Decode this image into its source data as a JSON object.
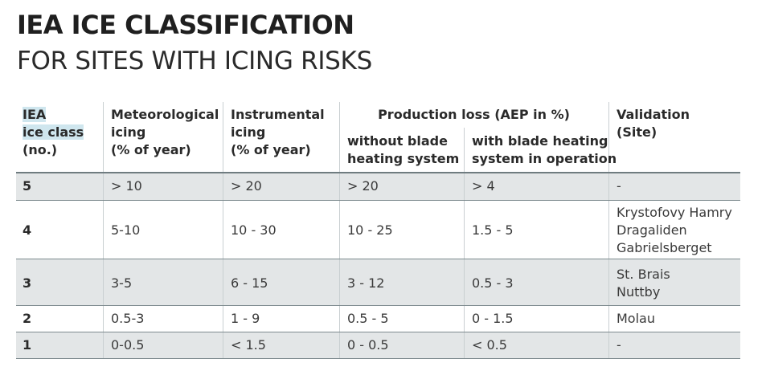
{
  "heading": {
    "title": "IEA ICE CLASSIFICATION",
    "subtitle": "FOR SITES WITH ICING RISKS"
  },
  "table": {
    "headers": {
      "ice_class": [
        "IEA",
        "ice class",
        "(no.)"
      ],
      "meteorological": [
        "Meteorological",
        "icing",
        "(% of year)"
      ],
      "instrumental": [
        "Instrumental",
        "icing",
        "(% of year)"
      ],
      "production_loss": "Production loss (AEP in %)",
      "without_heating": [
        "without blade",
        "heating system"
      ],
      "with_heating": [
        "with blade heating",
        "system in operation"
      ],
      "validation": [
        "Validation",
        "(Site)"
      ]
    },
    "rows": [
      {
        "class": "5",
        "meteorological": "> 10",
        "instrumental": "> 20",
        "without": "> 20",
        "with": "> 4",
        "validation": [
          "-"
        ]
      },
      {
        "class": "4",
        "meteorological": "5-10",
        "instrumental": "10 - 30",
        "without": "10 - 25",
        "with": "1.5 - 5",
        "validation": [
          "Krystofovy Hamry",
          "Dragaliden",
          "Gabrielsberget"
        ]
      },
      {
        "class": "3",
        "meteorological": "3-5",
        "instrumental": "6 - 15",
        "without": "3 - 12",
        "with": "0.5 - 3",
        "validation": [
          "St. Brais",
          "Nuttby"
        ]
      },
      {
        "class": "2",
        "meteorological": "0.5-3",
        "instrumental": "1 - 9",
        "without": "0.5 - 5",
        "with": "0 - 1.5",
        "validation": [
          "Molau"
        ]
      },
      {
        "class": "1",
        "meteorological": "0-0.5",
        "instrumental": "< 1.5",
        "without": "0 - 0.5",
        "with": "< 0.5",
        "validation": [
          "-"
        ]
      }
    ]
  }
}
